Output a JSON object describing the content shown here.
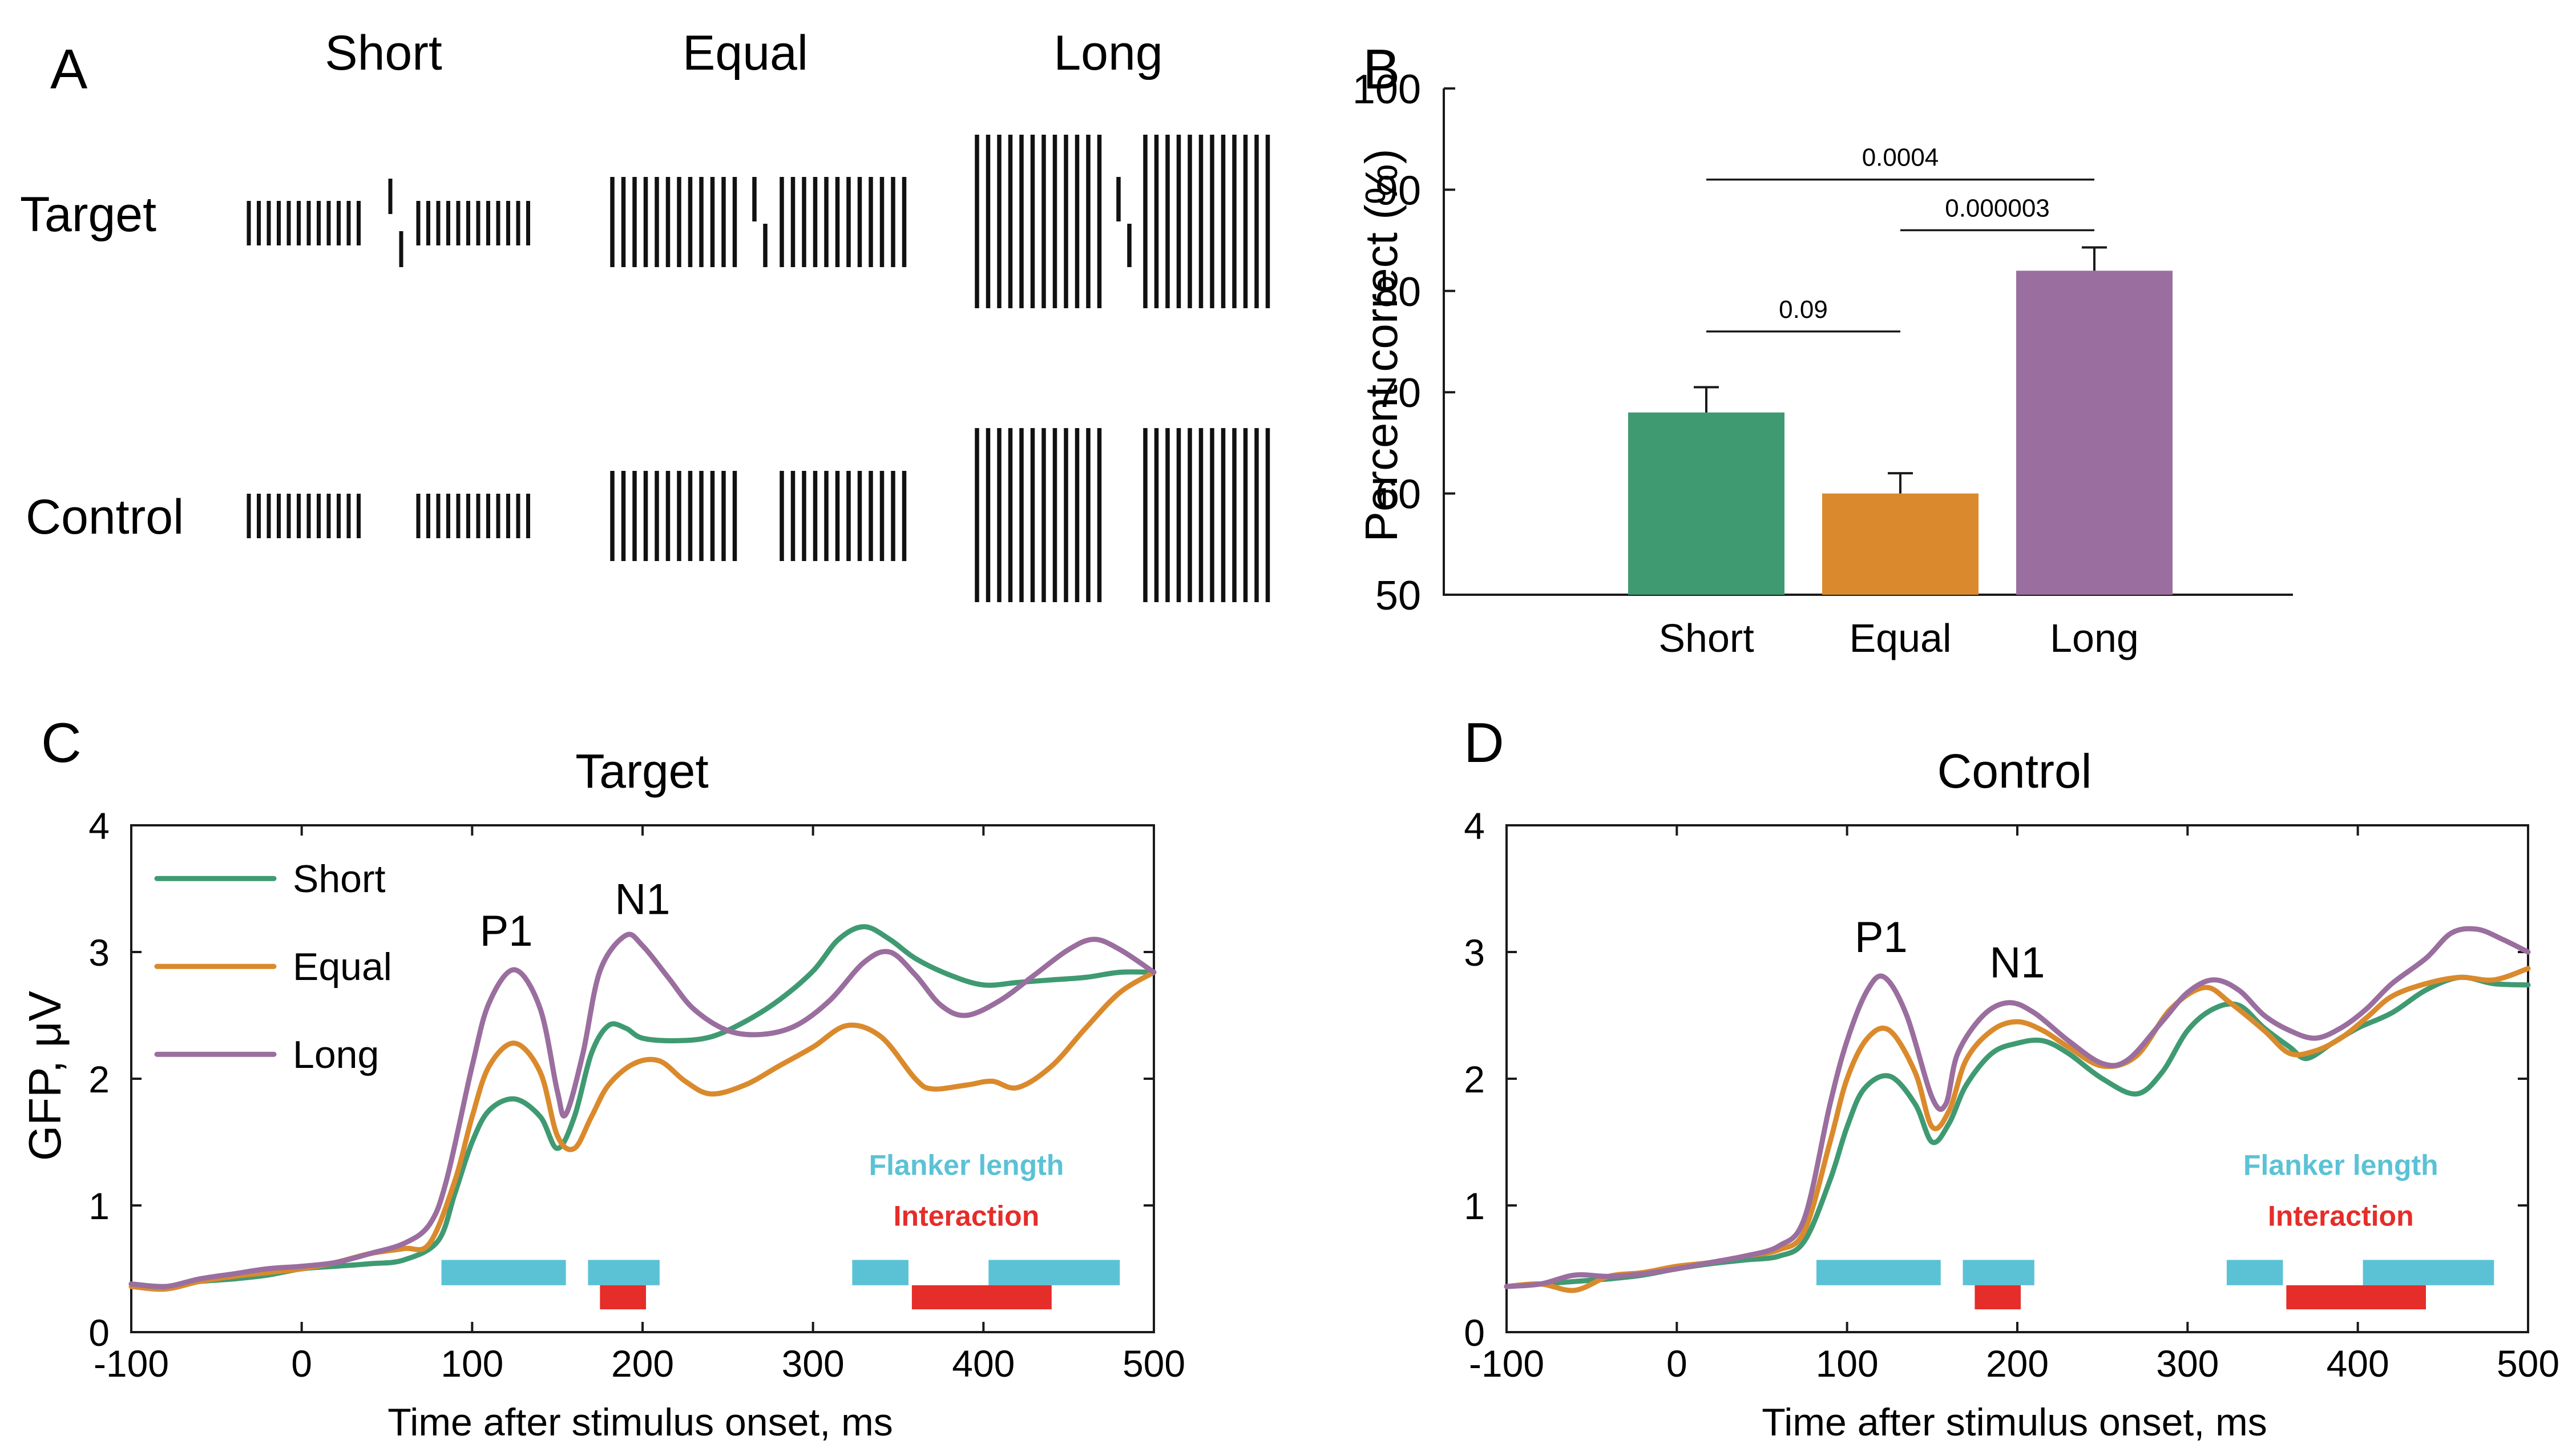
{
  "colors": {
    "short": "#3f9a72",
    "equal": "#da8a2c",
    "long": "#9a6e9e",
    "flanker_bar": "#5bc2d6",
    "interaction_bar": "#e52d2a",
    "axis": "#1a1a1a"
  },
  "panelA": {
    "label": "A",
    "columns": [
      "Short",
      "Equal",
      "Long"
    ],
    "rows": [
      "Target",
      "Control"
    ]
  },
  "chart_data": [
    {
      "id": "B",
      "label": "B",
      "type": "bar",
      "title": "",
      "xlabel": "",
      "ylabel": "Percent correct (%)",
      "ylim": [
        50,
        100
      ],
      "yticks": [
        "50",
        "60",
        "70",
        "80",
        "90",
        "100"
      ],
      "categories": [
        "Short",
        "Equal",
        "Long"
      ],
      "values": [
        68,
        60,
        82
      ],
      "errors": [
        2.5,
        2.0,
        2.3
      ],
      "significance": [
        {
          "from": "Short",
          "to": "Equal",
          "label": "0.09",
          "y": 76
        },
        {
          "from": "Equal",
          "to": "Long",
          "label": "0.000003",
          "y": 86
        },
        {
          "from": "Short",
          "to": "Long",
          "label": "0.0004",
          "y": 91
        }
      ]
    },
    {
      "id": "C",
      "label": "C",
      "type": "line",
      "title": "Target",
      "xlabel": "Time after stimulus onset, ms",
      "ylabel": "GFP, μV",
      "xlim": [
        -100,
        500
      ],
      "ylim": [
        0,
        4
      ],
      "xticks": [
        "-100",
        "0",
        "100",
        "200",
        "300",
        "400",
        "500"
      ],
      "yticks": [
        "0",
        "1",
        "2",
        "3",
        "4"
      ],
      "legend": [
        "Short",
        "Equal",
        "Long"
      ],
      "peaks": [
        {
          "label": "P1",
          "x": 120,
          "y": 3.05
        },
        {
          "label": "N1",
          "x": 200,
          "y": 3.3
        }
      ],
      "series": [
        {
          "name": "Short",
          "points": [
            [
              -100,
              0.38
            ],
            [
              -80,
              0.36
            ],
            [
              -60,
              0.4
            ],
            [
              -40,
              0.42
            ],
            [
              -20,
              0.45
            ],
            [
              0,
              0.5
            ],
            [
              20,
              0.52
            ],
            [
              40,
              0.54
            ],
            [
              60,
              0.57
            ],
            [
              80,
              0.72
            ],
            [
              90,
              1.1
            ],
            [
              100,
              1.5
            ],
            [
              110,
              1.75
            ],
            [
              125,
              1.84
            ],
            [
              140,
              1.7
            ],
            [
              150,
              1.45
            ],
            [
              160,
              1.7
            ],
            [
              170,
              2.2
            ],
            [
              180,
              2.42
            ],
            [
              190,
              2.4
            ],
            [
              200,
              2.32
            ],
            [
              220,
              2.3
            ],
            [
              240,
              2.33
            ],
            [
              260,
              2.45
            ],
            [
              280,
              2.62
            ],
            [
              300,
              2.85
            ],
            [
              315,
              3.1
            ],
            [
              330,
              3.2
            ],
            [
              345,
              3.1
            ],
            [
              360,
              2.95
            ],
            [
              380,
              2.82
            ],
            [
              400,
              2.74
            ],
            [
              420,
              2.76
            ],
            [
              440,
              2.78
            ],
            [
              460,
              2.8
            ],
            [
              480,
              2.84
            ],
            [
              500,
              2.84
            ]
          ]
        },
        {
          "name": "Equal",
          "points": [
            [
              -100,
              0.36
            ],
            [
              -80,
              0.34
            ],
            [
              -60,
              0.4
            ],
            [
              -40,
              0.44
            ],
            [
              -20,
              0.47
            ],
            [
              0,
              0.5
            ],
            [
              20,
              0.55
            ],
            [
              40,
              0.62
            ],
            [
              60,
              0.66
            ],
            [
              75,
              0.7
            ],
            [
              90,
              1.2
            ],
            [
              100,
              1.7
            ],
            [
              110,
              2.1
            ],
            [
              125,
              2.28
            ],
            [
              140,
              2.05
            ],
            [
              150,
              1.55
            ],
            [
              160,
              1.45
            ],
            [
              170,
              1.7
            ],
            [
              180,
              1.95
            ],
            [
              195,
              2.12
            ],
            [
              210,
              2.14
            ],
            [
              225,
              1.98
            ],
            [
              240,
              1.88
            ],
            [
              260,
              1.95
            ],
            [
              280,
              2.1
            ],
            [
              300,
              2.25
            ],
            [
              320,
              2.42
            ],
            [
              340,
              2.33
            ],
            [
              360,
              2.0
            ],
            [
              370,
              1.92
            ],
            [
              390,
              1.95
            ],
            [
              405,
              1.98
            ],
            [
              420,
              1.93
            ],
            [
              440,
              2.1
            ],
            [
              460,
              2.4
            ],
            [
              480,
              2.68
            ],
            [
              500,
              2.84
            ]
          ]
        },
        {
          "name": "Long",
          "points": [
            [
              -100,
              0.38
            ],
            [
              -80,
              0.36
            ],
            [
              -60,
              0.42
            ],
            [
              -40,
              0.46
            ],
            [
              -20,
              0.5
            ],
            [
              0,
              0.52
            ],
            [
              20,
              0.55
            ],
            [
              40,
              0.62
            ],
            [
              60,
              0.7
            ],
            [
              75,
              0.85
            ],
            [
              85,
              1.2
            ],
            [
              100,
              2.1
            ],
            [
              110,
              2.6
            ],
            [
              125,
              2.86
            ],
            [
              140,
              2.55
            ],
            [
              150,
              1.9
            ],
            [
              155,
              1.72
            ],
            [
              165,
              2.2
            ],
            [
              175,
              2.85
            ],
            [
              190,
              3.13
            ],
            [
              200,
              3.05
            ],
            [
              215,
              2.8
            ],
            [
              230,
              2.55
            ],
            [
              250,
              2.38
            ],
            [
              270,
              2.35
            ],
            [
              290,
              2.42
            ],
            [
              310,
              2.62
            ],
            [
              330,
              2.92
            ],
            [
              345,
              3.0
            ],
            [
              360,
              2.82
            ],
            [
              375,
              2.58
            ],
            [
              390,
              2.5
            ],
            [
              410,
              2.62
            ],
            [
              430,
              2.82
            ],
            [
              450,
              3.02
            ],
            [
              465,
              3.1
            ],
            [
              480,
              3.02
            ],
            [
              500,
              2.84
            ]
          ]
        }
      ],
      "sig_bars": {
        "flanker_label": "Flanker length",
        "interaction_label": "Interaction",
        "flanker": [
          [
            82,
            155
          ],
          [
            168,
            210
          ],
          [
            323,
            356
          ],
          [
            403,
            480
          ]
        ],
        "interaction": [
          [
            175,
            202
          ],
          [
            358,
            440
          ]
        ]
      }
    },
    {
      "id": "D",
      "label": "D",
      "type": "line",
      "title": "Control",
      "xlabel": "Time after stimulus onset, ms",
      "ylabel": "",
      "xlim": [
        -100,
        500
      ],
      "ylim": [
        0,
        4
      ],
      "xticks": [
        "-100",
        "0",
        "100",
        "200",
        "300",
        "400",
        "500"
      ],
      "yticks": [
        "0",
        "1",
        "2",
        "3",
        "4"
      ],
      "peaks": [
        {
          "label": "P1",
          "x": 120,
          "y": 3.0
        },
        {
          "label": "N1",
          "x": 200,
          "y": 2.8
        }
      ],
      "series": [
        {
          "name": "Short",
          "points": [
            [
              -100,
              0.36
            ],
            [
              -80,
              0.38
            ],
            [
              -60,
              0.4
            ],
            [
              -40,
              0.42
            ],
            [
              -20,
              0.45
            ],
            [
              0,
              0.5
            ],
            [
              20,
              0.54
            ],
            [
              40,
              0.57
            ],
            [
              60,
              0.6
            ],
            [
              75,
              0.72
            ],
            [
              90,
              1.2
            ],
            [
              100,
              1.62
            ],
            [
              110,
              1.92
            ],
            [
              125,
              2.02
            ],
            [
              140,
              1.8
            ],
            [
              150,
              1.5
            ],
            [
              160,
              1.65
            ],
            [
              170,
              1.95
            ],
            [
              185,
              2.2
            ],
            [
              200,
              2.28
            ],
            [
              215,
              2.3
            ],
            [
              230,
              2.2
            ],
            [
              250,
              2.0
            ],
            [
              270,
              1.88
            ],
            [
              285,
              2.05
            ],
            [
              300,
              2.38
            ],
            [
              315,
              2.55
            ],
            [
              330,
              2.58
            ],
            [
              345,
              2.4
            ],
            [
              360,
              2.25
            ],
            [
              370,
              2.16
            ],
            [
              385,
              2.28
            ],
            [
              400,
              2.4
            ],
            [
              420,
              2.52
            ],
            [
              440,
              2.7
            ],
            [
              460,
              2.8
            ],
            [
              480,
              2.75
            ],
            [
              500,
              2.74
            ]
          ]
        },
        {
          "name": "Equal",
          "points": [
            [
              -100,
              0.36
            ],
            [
              -80,
              0.38
            ],
            [
              -60,
              0.33
            ],
            [
              -40,
              0.44
            ],
            [
              -20,
              0.47
            ],
            [
              0,
              0.52
            ],
            [
              20,
              0.55
            ],
            [
              40,
              0.6
            ],
            [
              60,
              0.65
            ],
            [
              75,
              0.8
            ],
            [
              90,
              1.5
            ],
            [
              100,
              2.0
            ],
            [
              112,
              2.32
            ],
            [
              125,
              2.38
            ],
            [
              140,
              2.05
            ],
            [
              150,
              1.62
            ],
            [
              160,
              1.75
            ],
            [
              170,
              2.15
            ],
            [
              185,
              2.38
            ],
            [
              200,
              2.45
            ],
            [
              215,
              2.38
            ],
            [
              230,
              2.25
            ],
            [
              250,
              2.1
            ],
            [
              270,
              2.18
            ],
            [
              290,
              2.55
            ],
            [
              310,
              2.72
            ],
            [
              325,
              2.6
            ],
            [
              345,
              2.38
            ],
            [
              360,
              2.2
            ],
            [
              375,
              2.22
            ],
            [
              390,
              2.32
            ],
            [
              405,
              2.48
            ],
            [
              420,
              2.65
            ],
            [
              440,
              2.75
            ],
            [
              460,
              2.8
            ],
            [
              480,
              2.78
            ],
            [
              500,
              2.87
            ]
          ]
        },
        {
          "name": "Long",
          "points": [
            [
              -100,
              0.36
            ],
            [
              -80,
              0.38
            ],
            [
              -60,
              0.45
            ],
            [
              -40,
              0.44
            ],
            [
              -20,
              0.46
            ],
            [
              0,
              0.5
            ],
            [
              20,
              0.55
            ],
            [
              40,
              0.6
            ],
            [
              60,
              0.68
            ],
            [
              75,
              0.9
            ],
            [
              90,
              1.8
            ],
            [
              100,
              2.3
            ],
            [
              112,
              2.7
            ],
            [
              122,
              2.8
            ],
            [
              135,
              2.5
            ],
            [
              150,
              1.85
            ],
            [
              158,
              1.8
            ],
            [
              165,
              2.2
            ],
            [
              180,
              2.5
            ],
            [
              195,
              2.6
            ],
            [
              210,
              2.52
            ],
            [
              230,
              2.3
            ],
            [
              250,
              2.12
            ],
            [
              265,
              2.15
            ],
            [
              285,
              2.45
            ],
            [
              300,
              2.68
            ],
            [
              315,
              2.78
            ],
            [
              330,
              2.7
            ],
            [
              345,
              2.5
            ],
            [
              360,
              2.38
            ],
            [
              375,
              2.32
            ],
            [
              390,
              2.4
            ],
            [
              405,
              2.55
            ],
            [
              420,
              2.75
            ],
            [
              440,
              2.95
            ],
            [
              455,
              3.15
            ],
            [
              470,
              3.18
            ],
            [
              485,
              3.1
            ],
            [
              500,
              3.0
            ]
          ]
        }
      ],
      "sig_bars": {
        "flanker_label": "Flanker length",
        "interaction_label": "Interaction",
        "flanker": [
          [
            82,
            155
          ],
          [
            168,
            210
          ],
          [
            323,
            356
          ],
          [
            403,
            480
          ]
        ],
        "interaction": [
          [
            175,
            202
          ],
          [
            358,
            440
          ]
        ]
      }
    }
  ]
}
